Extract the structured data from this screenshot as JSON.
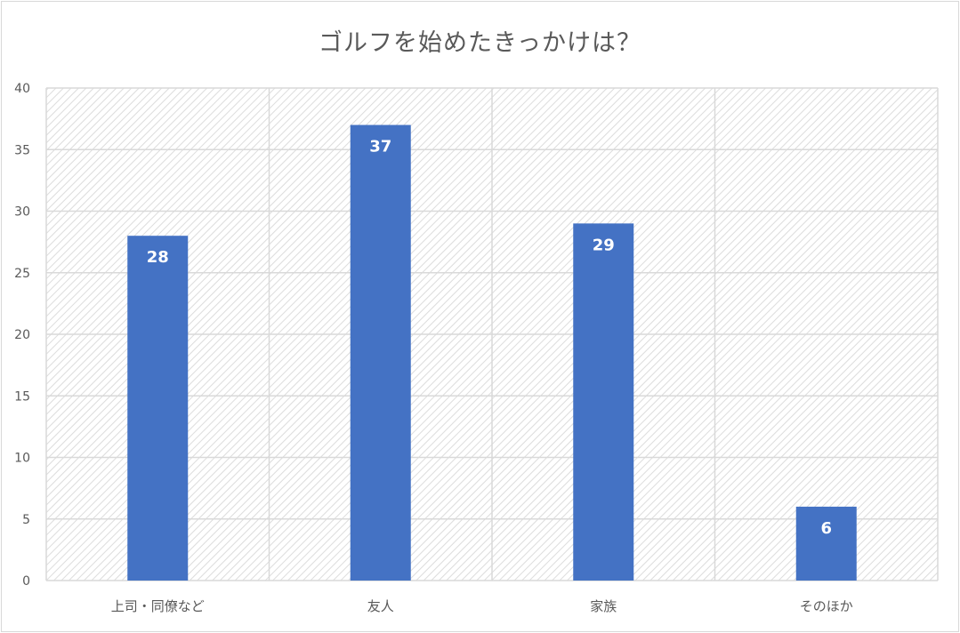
{
  "chart_data": {
    "type": "bar",
    "title": "ゴルフを始めたきっかけは？",
    "categories": [
      "上司・同僚など",
      "友人",
      "家族",
      "そのほか"
    ],
    "values": [
      28,
      37,
      29,
      6
    ],
    "ylim": [
      0,
      40
    ],
    "yticks": [
      0,
      5,
      10,
      15,
      20,
      25,
      30,
      35,
      40
    ],
    "grid": true,
    "data_labels": true,
    "legend": "none"
  },
  "colors": {
    "bar": "#4472c4",
    "grid": "#d9d9d9",
    "hatch": "#d9d9d9",
    "text": "#595959",
    "label": "#ffffff"
  }
}
